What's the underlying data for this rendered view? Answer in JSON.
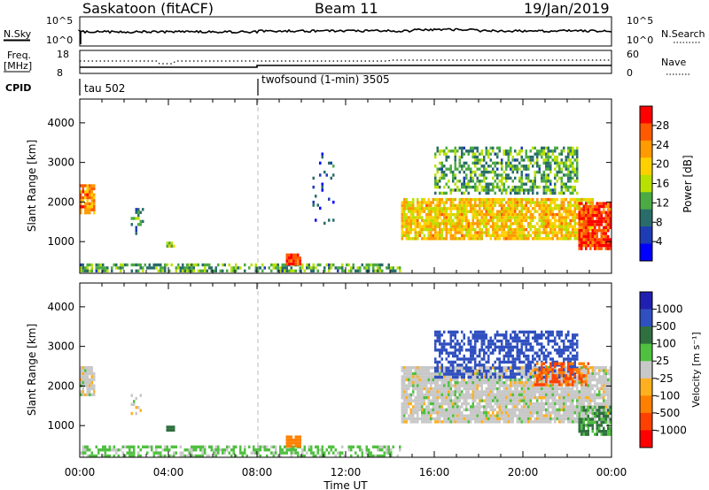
{
  "header": {
    "title": "Saskatoon (fitACF)",
    "beam": "Beam 11",
    "date": "19/Jan/2019"
  },
  "top_panels": {
    "nsky_label": "N.Sky",
    "nsky_ticks": [
      "10^5",
      "10^0"
    ],
    "nsearch_label": "N.Search",
    "nsearch_ticks": [
      "10^5",
      "10^0"
    ],
    "freq_label": "Freq.",
    "freq_unit": "[MHz]",
    "freq_ticks": [
      "18",
      "8"
    ],
    "nave_label": "Nave",
    "nave_ticks": [
      "60",
      "0"
    ],
    "cpid_label": "CPID",
    "cpid_segments": [
      {
        "label": "tau 502",
        "start_hour": 0
      },
      {
        "label": "twofsound (1-min) 3505",
        "start_hour": 8
      }
    ]
  },
  "axes": {
    "ylabel": "Slant Range [km]",
    "yticks": [
      1000,
      2000,
      3000,
      4000
    ],
    "ylim": [
      200,
      4600
    ],
    "xlabel": "Time UT",
    "xticks": [
      "00:00",
      "04:00",
      "08:00",
      "12:00",
      "16:00",
      "20:00",
      "00:00"
    ],
    "xlim_hours": [
      0,
      24
    ]
  },
  "colorbars": {
    "power": {
      "label": "Power [dB]",
      "ticks": [
        "28",
        "24",
        "20",
        "16",
        "12",
        "8",
        "4"
      ],
      "colors": [
        "#ff0000",
        "#ff5a00",
        "#ff9a00",
        "#ffd000",
        "#b8e000",
        "#4caa44",
        "#2a6c6a",
        "#1e3cb4",
        "#0000ff"
      ]
    },
    "velocity": {
      "label": "Velocity [m s⁻¹]",
      "ticks": [
        "1000",
        "500",
        "100",
        "25",
        "-25",
        "-100",
        "-500",
        "-1000"
      ],
      "colors": [
        "#2020b0",
        "#3050c0",
        "#307040",
        "#50c040",
        "#c8c8c8",
        "#ffb020",
        "#ff8000",
        "#ff4000",
        "#ff0000"
      ]
    }
  },
  "chart_data": [
    {
      "type": "heatmap",
      "name": "Power",
      "x_unit": "hours UT",
      "y_unit": "km",
      "regions": [
        {
          "t": [
            0.0,
            0.7
          ],
          "r": [
            1750,
            2450
          ],
          "power_db": 24,
          "density": 0.85
        },
        {
          "t": [
            2.3,
            2.9
          ],
          "r": [
            1150,
            1850
          ],
          "power_db": 10,
          "density": 0.35
        },
        {
          "t": [
            3.9,
            4.3
          ],
          "r": [
            850,
            1000
          ],
          "power_db": 16,
          "density": 0.9
        },
        {
          "t": [
            0.0,
            14.5
          ],
          "r": [
            250,
            450
          ],
          "power_db": 12,
          "density": 0.55
        },
        {
          "t": [
            9.3,
            10.0
          ],
          "r": [
            450,
            700
          ],
          "power_db": 28,
          "density": 0.95
        },
        {
          "t": [
            10.5,
            11.5
          ],
          "r": [
            1500,
            3400
          ],
          "power_db": 6,
          "density": 0.08
        },
        {
          "t": [
            14.5,
            23.2
          ],
          "r": [
            1100,
            2100
          ],
          "power_db": 20,
          "density": 0.85
        },
        {
          "t": [
            16.0,
            22.5
          ],
          "r": [
            2200,
            3400
          ],
          "power_db": 12,
          "density": 0.55
        },
        {
          "t": [
            22.5,
            24.0
          ],
          "r": [
            800,
            2000
          ],
          "power_db": 28,
          "density": 0.9
        }
      ]
    },
    {
      "type": "heatmap",
      "name": "Velocity",
      "x_unit": "hours UT",
      "y_unit": "km",
      "regions": [
        {
          "t": [
            0.0,
            0.7
          ],
          "r": [
            1800,
            2500
          ],
          "velocity": 0,
          "density": 0.9
        },
        {
          "t": [
            2.3,
            2.9
          ],
          "r": [
            1200,
            1800
          ],
          "velocity": 0,
          "density": 0.3
        },
        {
          "t": [
            3.9,
            4.3
          ],
          "r": [
            850,
            1000
          ],
          "velocity": 150,
          "density": 0.9
        },
        {
          "t": [
            0.0,
            14.5
          ],
          "r": [
            250,
            500
          ],
          "velocity": 40,
          "density": 0.55
        },
        {
          "t": [
            9.3,
            10.0
          ],
          "r": [
            500,
            750
          ],
          "velocity": -300,
          "density": 0.9
        },
        {
          "t": [
            14.5,
            24.0
          ],
          "r": [
            1100,
            2500
          ],
          "velocity": 0,
          "density": 0.9
        },
        {
          "t": [
            16.0,
            22.5
          ],
          "r": [
            2200,
            3400
          ],
          "velocity": 500,
          "density": 0.55
        },
        {
          "t": [
            20.5,
            23.0
          ],
          "r": [
            2000,
            2600
          ],
          "velocity": -500,
          "density": 0.6
        },
        {
          "t": [
            22.5,
            24.0
          ],
          "r": [
            800,
            1500
          ],
          "velocity": 100,
          "density": 0.7
        }
      ]
    }
  ]
}
